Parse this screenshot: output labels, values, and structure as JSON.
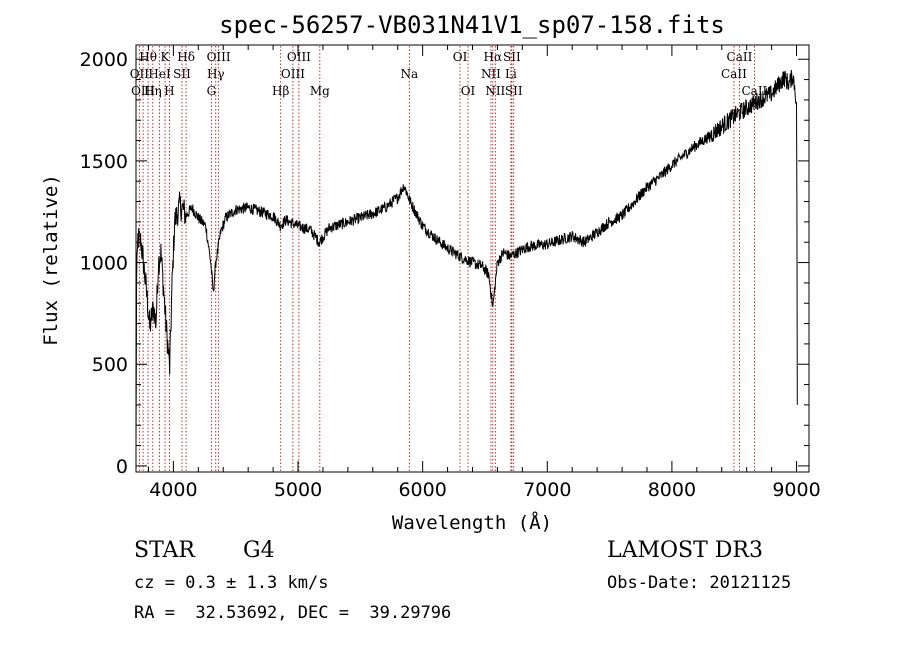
{
  "chart_data": {
    "type": "line",
    "title": "spec-56257-VB031N41V1_sp07-158.fits",
    "xlabel": "Wavelength (Å)",
    "ylabel": "Flux (relative)",
    "xlim": [
      3700,
      9100
    ],
    "ylim": [
      -30,
      2070
    ],
    "xticks": [
      4000,
      5000,
      6000,
      7000,
      8000,
      9000
    ],
    "yticks": [
      0,
      500,
      1000,
      1500,
      2000
    ],
    "xtick_labels": [
      "4000",
      "5000",
      "6000",
      "7000",
      "8000",
      "9000"
    ],
    "ytick_labels": [
      "0",
      "500",
      "1000",
      "1500",
      "2000"
    ],
    "series": [
      {
        "name": "flux",
        "anchors": [
          [
            3700,
            100
          ],
          [
            3705,
            900
          ],
          [
            3715,
            1120
          ],
          [
            3740,
            1100
          ],
          [
            3760,
            1000
          ],
          [
            3790,
            820
          ],
          [
            3810,
            680
          ],
          [
            3840,
            780
          ],
          [
            3860,
            700
          ],
          [
            3880,
            1000
          ],
          [
            3900,
            1050
          ],
          [
            3920,
            880
          ],
          [
            3940,
            700
          ],
          [
            3960,
            560
          ],
          [
            3970,
            480
          ],
          [
            3990,
            900
          ],
          [
            4010,
            1200
          ],
          [
            4050,
            1280
          ],
          [
            4080,
            1260
          ],
          [
            4100,
            1230
          ],
          [
            4150,
            1270
          ],
          [
            4200,
            1220
          ],
          [
            4260,
            1180
          ],
          [
            4300,
            1000
          ],
          [
            4320,
            850
          ],
          [
            4340,
            1000
          ],
          [
            4380,
            1150
          ],
          [
            4420,
            1220
          ],
          [
            4500,
            1260
          ],
          [
            4600,
            1270
          ],
          [
            4700,
            1250
          ],
          [
            4800,
            1230
          ],
          [
            4860,
            1180
          ],
          [
            4900,
            1210
          ],
          [
            5000,
            1180
          ],
          [
            5100,
            1160
          ],
          [
            5170,
            1100
          ],
          [
            5250,
            1170
          ],
          [
            5400,
            1200
          ],
          [
            5500,
            1220
          ],
          [
            5600,
            1240
          ],
          [
            5700,
            1270
          ],
          [
            5800,
            1320
          ],
          [
            5850,
            1380
          ],
          [
            5900,
            1300
          ],
          [
            6000,
            1180
          ],
          [
            6100,
            1120
          ],
          [
            6200,
            1070
          ],
          [
            6300,
            1030
          ],
          [
            6400,
            1000
          ],
          [
            6480,
            980
          ],
          [
            6530,
            940
          ],
          [
            6563,
            780
          ],
          [
            6600,
            1000
          ],
          [
            6650,
            1050
          ],
          [
            6700,
            1030
          ],
          [
            6760,
            1050
          ],
          [
            6850,
            1080
          ],
          [
            7000,
            1090
          ],
          [
            7100,
            1110
          ],
          [
            7200,
            1130
          ],
          [
            7300,
            1100
          ],
          [
            7400,
            1150
          ],
          [
            7500,
            1200
          ],
          [
            7600,
            1230
          ],
          [
            7700,
            1300
          ],
          [
            7800,
            1370
          ],
          [
            7900,
            1420
          ],
          [
            8000,
            1480
          ],
          [
            8100,
            1530
          ],
          [
            8200,
            1580
          ],
          [
            8300,
            1620
          ],
          [
            8400,
            1670
          ],
          [
            8500,
            1720
          ],
          [
            8600,
            1760
          ],
          [
            8700,
            1800
          ],
          [
            8800,
            1830
          ],
          [
            8850,
            1870
          ],
          [
            8900,
            1910
          ],
          [
            8940,
            1880
          ],
          [
            8970,
            1920
          ],
          [
            8990,
            1850
          ],
          [
            9000,
            1750
          ],
          [
            9003,
            1300
          ],
          [
            9006,
            300
          ]
        ]
      }
    ],
    "lines": [
      {
        "name": "Hθ",
        "wavelength": 3797,
        "row": 0
      },
      {
        "name": "OII",
        "wavelength": 3727,
        "row": 1
      },
      {
        "name": "OIII",
        "wavelength": 3757,
        "row": 2
      },
      {
        "name": "K",
        "wavelength": 3933,
        "row": 0
      },
      {
        "name": "HeI",
        "wavelength": 3889,
        "row": 1
      },
      {
        "name": "Hη",
        "wavelength": 3835,
        "row": 2
      },
      {
        "name": "Hδ",
        "wavelength": 4102,
        "row": 0
      },
      {
        "name": "SII",
        "wavelength": 4069,
        "row": 1
      },
      {
        "name": "H",
        "wavelength": 3968,
        "row": 2
      },
      {
        "name": "OIII",
        "wavelength": 4363,
        "row": 0
      },
      {
        "name": "Hγ",
        "wavelength": 4340,
        "row": 1
      },
      {
        "name": "G",
        "wavelength": 4305,
        "row": 2
      },
      {
        "name": "OIII",
        "wavelength": 5007,
        "row": 0
      },
      {
        "name": "OIII",
        "wavelength": 4959,
        "row": 1
      },
      {
        "name": "Hβ",
        "wavelength": 4861,
        "row": 2
      },
      {
        "name": "Mg",
        "wavelength": 5175,
        "row": 2
      },
      {
        "name": "Na",
        "wavelength": 5893,
        "row": 1
      },
      {
        "name": "OI",
        "wavelength": 6300,
        "row": 0
      },
      {
        "name": "OI",
        "wavelength": 6364,
        "row": 2
      },
      {
        "name": "Hα",
        "wavelength": 6563,
        "row": 0
      },
      {
        "name": "NII",
        "wavelength": 6548,
        "row": 1
      },
      {
        "name": "NII",
        "wavelength": 6583,
        "row": 2
      },
      {
        "name": "SII",
        "wavelength": 6716,
        "row": 0
      },
      {
        "name": "Li",
        "wavelength": 6708,
        "row": 1
      },
      {
        "name": "SII",
        "wavelength": 6731,
        "row": 2
      },
      {
        "name": "CaII",
        "wavelength": 8542,
        "row": 0
      },
      {
        "name": "CaII",
        "wavelength": 8498,
        "row": 1
      },
      {
        "name": "CaII",
        "wavelength": 8662,
        "row": 2
      }
    ]
  },
  "info": {
    "object_type": "STAR",
    "subclass": "G4",
    "survey": "LAMOST DR3",
    "cz": "cz = 0.3 ± 1.3 km/s",
    "obs_date": "Obs-Date: 20121125",
    "coords": "RA =  32.53692, DEC =  39.29796"
  }
}
